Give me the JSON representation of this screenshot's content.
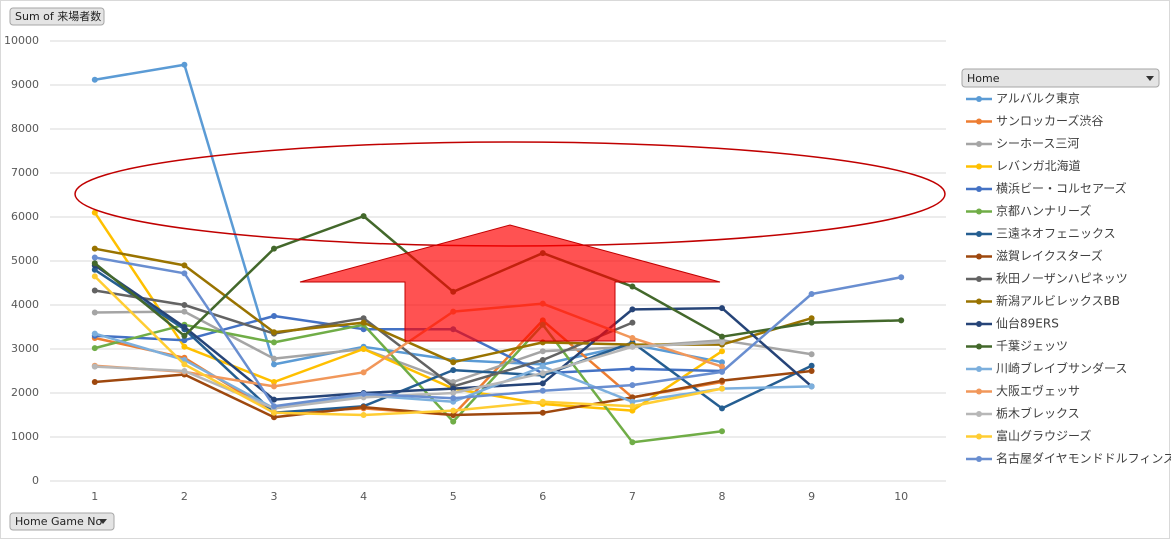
{
  "chart_data": {
    "type": "line",
    "y_field_button": "Sum of 来場者数",
    "x_field_button": "Home Game No",
    "legend_field_button": "Home",
    "categories": [
      "1",
      "2",
      "3",
      "4",
      "5",
      "6",
      "7",
      "8",
      "9",
      "10"
    ],
    "ylim": [
      0,
      10000
    ],
    "yticks": [
      0,
      1000,
      2000,
      3000,
      4000,
      5000,
      6000,
      7000,
      8000,
      9000,
      10000
    ],
    "grid": true,
    "series": [
      {
        "name": "アルバルク東京",
        "color": "#5b9bd5",
        "values": [
          9120,
          9460,
          2650,
          3050,
          2750,
          2650,
          3100,
          2700,
          null,
          null
        ]
      },
      {
        "name": "サンロッカーズ渋谷",
        "color": "#ed7d31",
        "values": [
          3250,
          2800,
          1550,
          1650,
          1500,
          3650,
          1900,
          2250,
          null,
          null
        ]
      },
      {
        "name": "シーホース三河",
        "color": "#a5a5a5",
        "values": [
          3830,
          3850,
          2780,
          3000,
          2250,
          2950,
          3050,
          3200,
          2880,
          null
        ]
      },
      {
        "name": "レバンガ北海道",
        "color": "#ffc000",
        "values": [
          6100,
          3050,
          2250,
          3000,
          2100,
          1750,
          1600,
          2950,
          null,
          null
        ]
      },
      {
        "name": "横浜ビー・コルセアーズ",
        "color": "#4472c4",
        "values": [
          3300,
          3200,
          3750,
          3450,
          3450,
          2450,
          2550,
          2500,
          null,
          null
        ]
      },
      {
        "name": "京都ハンナリーズ",
        "color": "#70ad47",
        "values": [
          3020,
          3550,
          3150,
          3550,
          1350,
          3550,
          880,
          1130,
          null,
          null
        ]
      },
      {
        "name": "三遠ネオフェニックス",
        "color": "#255e91",
        "values": [
          4800,
          3450,
          1550,
          1700,
          2520,
          2400,
          3150,
          1650,
          2620,
          null
        ]
      },
      {
        "name": "滋賀レイクスターズ",
        "color": "#9e480e",
        "values": [
          2250,
          2420,
          1450,
          1680,
          1500,
          1550,
          1900,
          2280,
          2500,
          null
        ]
      },
      {
        "name": "秋田ノーザンハピネッツ",
        "color": "#636363",
        "values": [
          4330,
          4000,
          3350,
          3700,
          2150,
          2750,
          3600,
          null,
          null,
          null
        ]
      },
      {
        "name": "新潟アルビレックスBB",
        "color": "#997300",
        "values": [
          5280,
          4900,
          3380,
          3600,
          2700,
          3150,
          3100,
          3100,
          3700,
          null
        ]
      },
      {
        "name": "仙台89ERS",
        "color": "#264478",
        "values": [
          4900,
          3500,
          1850,
          2000,
          2100,
          2220,
          3900,
          3930,
          2150,
          null
        ]
      },
      {
        "name": "千葉ジェッツ",
        "color": "#43682b",
        "values": [
          4950,
          3300,
          5280,
          6020,
          4300,
          5180,
          4420,
          3280,
          3600,
          3650
        ]
      },
      {
        "name": "川崎ブレイブサンダース",
        "color": "#7cafdd",
        "values": [
          3350,
          2750,
          1650,
          1950,
          1800,
          2600,
          1800,
          2100,
          2150,
          null
        ]
      },
      {
        "name": "大阪エヴェッサ",
        "color": "#f1975a",
        "values": [
          2620,
          2480,
          2150,
          2470,
          3850,
          4030,
          3250,
          2600,
          null,
          null
        ]
      },
      {
        "name": "栃木ブレックス",
        "color": "#b7b7b7",
        "values": [
          2600,
          2500,
          1650,
          1900,
          2000,
          2450,
          3050,
          3150,
          null,
          null
        ]
      },
      {
        "name": "富山グラウジーズ",
        "color": "#ffcd33",
        "values": [
          4650,
          2650,
          1550,
          1500,
          1600,
          1800,
          1700,
          2100,
          null,
          null
        ]
      },
      {
        "name": "名古屋ダイヤモンドドルフィンズ",
        "color": "#698ed0",
        "values": [
          5080,
          4720,
          1700,
          1980,
          1880,
          2050,
          2180,
          2480,
          4250,
          4630
        ]
      }
    ]
  }
}
